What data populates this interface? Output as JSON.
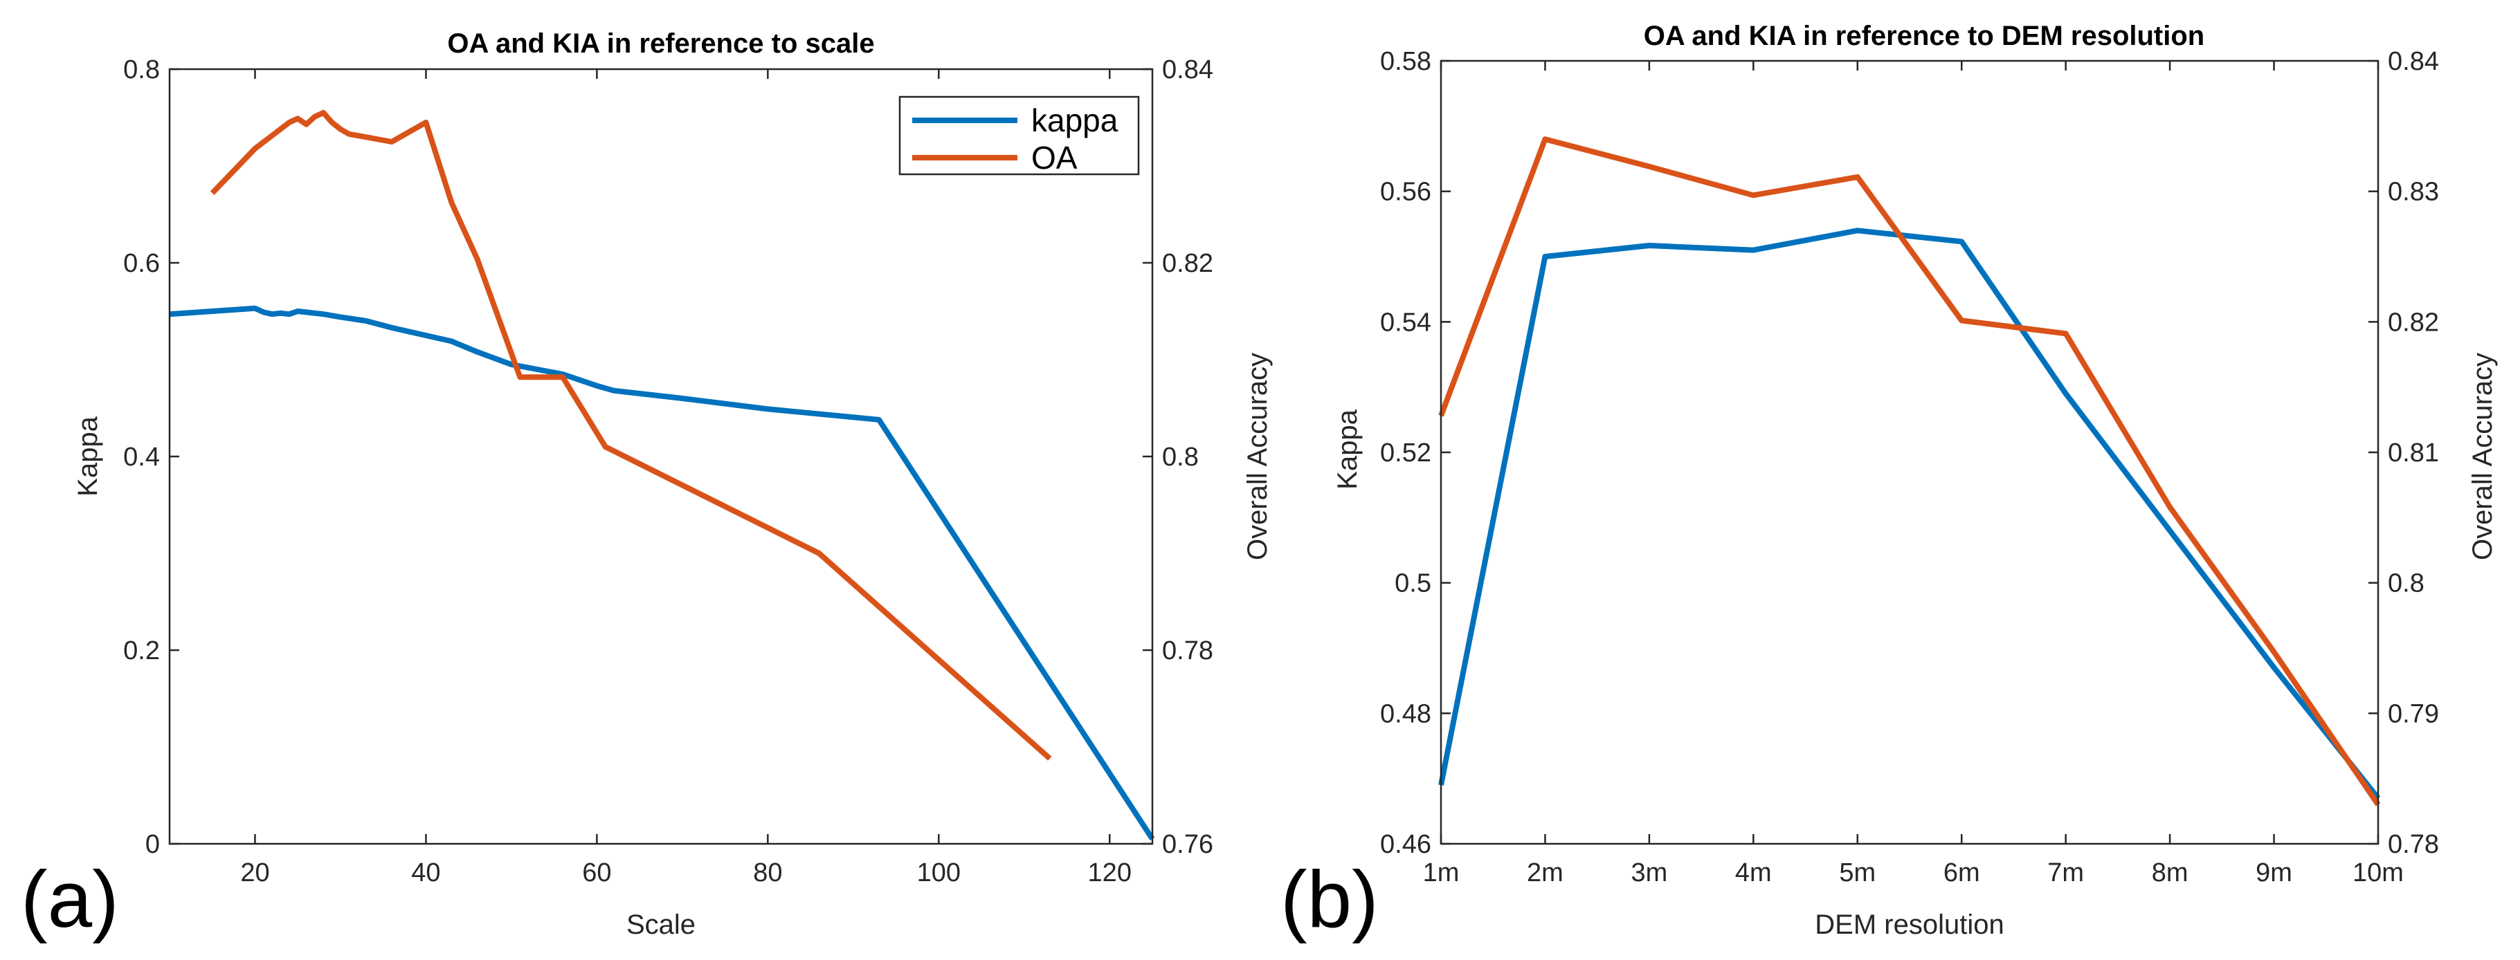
{
  "colors": {
    "kappa": "#0072BD",
    "oa": "#D95319"
  },
  "chart_data": [
    {
      "type": "line",
      "panel_label": "(a)",
      "title": "OA and KIA in reference to scale",
      "xlabel": "Scale",
      "ylabel": "Kappa",
      "y2label": "Overall Accuracy",
      "xlim": [
        10,
        125
      ],
      "ylim": [
        0,
        0.8
      ],
      "y2lim": [
        0.76,
        0.84
      ],
      "x_ticks": [
        "20",
        "40",
        "60",
        "80",
        "100",
        "120"
      ],
      "x_tick_values": [
        20,
        40,
        60,
        80,
        100,
        120
      ],
      "y_ticks": [
        "0",
        "0.2",
        "0.4",
        "0.6",
        "0.8"
      ],
      "y_tick_values": [
        0,
        0.2,
        0.4,
        0.6,
        0.8
      ],
      "y2_ticks": [
        "0.76",
        "0.78",
        "0.8",
        "0.82",
        "0.84"
      ],
      "y2_tick_values": [
        0.76,
        0.78,
        0.8,
        0.82,
        0.84
      ],
      "legend": [
        "kappa",
        "OA"
      ],
      "series": [
        {
          "name": "kappa",
          "axis": "left",
          "x": [
            10,
            15,
            20,
            21,
            22,
            23,
            24,
            25,
            26,
            28,
            30,
            33,
            36,
            40,
            43,
            46,
            50,
            53,
            56,
            60,
            62,
            70,
            80,
            93,
            125
          ],
          "values": [
            0.547,
            0.55,
            0.553,
            0.549,
            0.547,
            0.548,
            0.547,
            0.55,
            0.549,
            0.547,
            0.544,
            0.54,
            0.533,
            0.525,
            0.519,
            0.508,
            0.495,
            0.49,
            0.485,
            0.473,
            0.468,
            0.46,
            0.449,
            0.438,
            0.005
          ]
        },
        {
          "name": "OA",
          "axis": "right",
          "x": [
            15,
            20,
            24,
            25,
            26,
            27,
            28,
            29,
            30,
            31,
            36,
            40,
            43,
            46,
            51,
            56,
            61,
            86,
            113
          ],
          "values": [
            0.8272,
            0.8318,
            0.8345,
            0.8349,
            0.8343,
            0.8351,
            0.8355,
            0.8345,
            0.8338,
            0.8333,
            0.8325,
            0.8345,
            0.8262,
            0.8204,
            0.8082,
            0.8082,
            0.801,
            0.79,
            0.7688
          ]
        }
      ]
    },
    {
      "type": "line",
      "panel_label": "(b)",
      "title": "OA and KIA in reference to DEM resolution",
      "xlabel": "DEM resolution",
      "ylabel": "Kappa",
      "y2label": "Overall Accuracy",
      "categories": [
        "1m",
        "2m",
        "3m",
        "4m",
        "5m",
        "6m",
        "7m",
        "8m",
        "9m",
        "10m"
      ],
      "ylim": [
        0.46,
        0.58
      ],
      "y2lim": [
        0.78,
        0.84
      ],
      "y_ticks": [
        "0.46",
        "0.48",
        "0.5",
        "0.52",
        "0.54",
        "0.56",
        "0.58"
      ],
      "y_tick_values": [
        0.46,
        0.48,
        0.5,
        0.52,
        0.54,
        0.56,
        0.58
      ],
      "y2_ticks": [
        "0.78",
        "0.79",
        "0.8",
        "0.81",
        "0.82",
        "0.83",
        "0.84"
      ],
      "y2_tick_values": [
        0.78,
        0.79,
        0.8,
        0.81,
        0.82,
        0.83,
        0.84
      ],
      "series": [
        {
          "name": "kappa",
          "axis": "left",
          "values": [
            0.469,
            0.55,
            0.5517,
            0.551,
            0.554,
            0.5523,
            0.529,
            0.508,
            0.487,
            0.467
          ]
        },
        {
          "name": "OA",
          "axis": "right",
          "values": [
            0.8128,
            0.834,
            0.8319,
            0.8297,
            0.8311,
            0.8201,
            0.8191,
            0.8058,
            0.7947,
            0.783
          ]
        }
      ]
    }
  ]
}
